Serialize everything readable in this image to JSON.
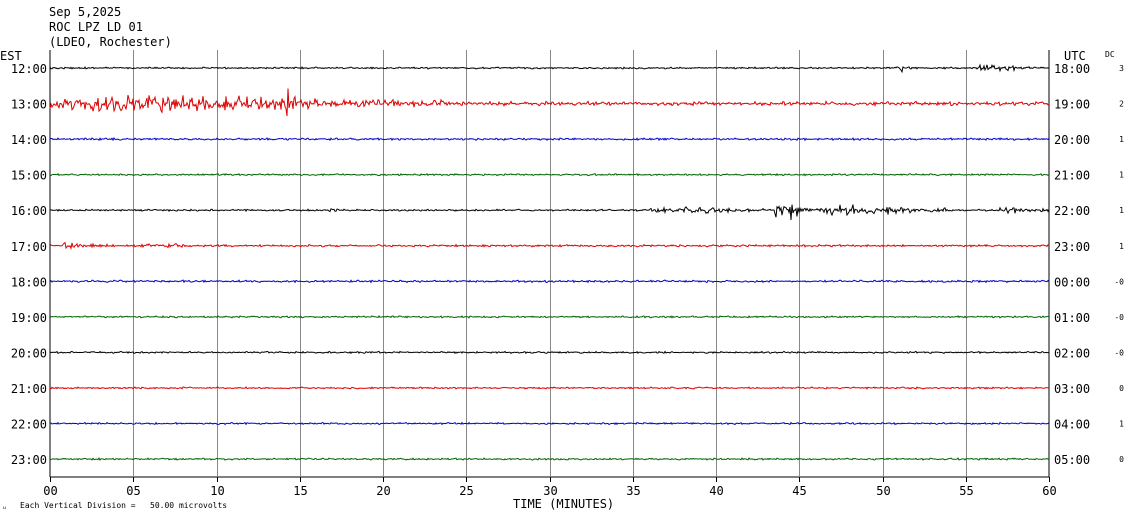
{
  "header": {
    "date": "Sep 5,2025",
    "station": "ROC LPZ LD 01",
    "network": "(LDEO, Rochester)",
    "left_tz": "EST",
    "right_tz": "UTC",
    "dc_label": "DC"
  },
  "footer": {
    "scale_text": "Each Vertical Division =   50.00 microvolts",
    "corner_mark": "ᵤ"
  },
  "chart_data": {
    "type": "line",
    "title": "",
    "xlabel": "TIME (MINUTES)",
    "ylabel": "",
    "xlim": [
      0,
      60
    ],
    "x_ticks": [
      "00",
      "05",
      "10",
      "15",
      "20",
      "25",
      "30",
      "35",
      "40",
      "45",
      "50",
      "55",
      "60"
    ],
    "grid": true,
    "trace_colors": [
      "#000000",
      "#dd0000",
      "#0000cc",
      "#006400"
    ],
    "rows": [
      {
        "est": "12:00",
        "utc": "18:00",
        "dc": "3",
        "color": "#000000",
        "noise": 1.0,
        "events": [
          {
            "start": 50.7,
            "end": 52.0,
            "amp": 4
          },
          {
            "start": 55.5,
            "end": 58.8,
            "amp": 5
          }
        ]
      },
      {
        "est": "13:00",
        "utc": "19:00",
        "dc": "2",
        "color": "#dd0000",
        "noise": 2.2,
        "events": [
          {
            "start": 0,
            "end": 24,
            "amp": 10
          },
          {
            "start": 14,
            "end": 15,
            "amp": 16
          }
        ]
      },
      {
        "est": "14:00",
        "utc": "20:00",
        "dc": "1",
        "color": "#0000cc",
        "noise": 1.2,
        "events": []
      },
      {
        "est": "15:00",
        "utc": "21:00",
        "dc": "1",
        "color": "#006400",
        "noise": 1.0,
        "events": []
      },
      {
        "est": "16:00",
        "utc": "22:00",
        "dc": "1",
        "color": "#000000",
        "noise": 1.0,
        "events": [
          {
            "start": 16.8,
            "end": 17.3,
            "amp": 4
          },
          {
            "start": 36,
            "end": 43,
            "amp": 4
          },
          {
            "start": 43.5,
            "end": 45.5,
            "amp": 12
          },
          {
            "start": 45.5,
            "end": 54,
            "amp": 6
          },
          {
            "start": 57,
            "end": 60,
            "amp": 4
          }
        ]
      },
      {
        "est": "17:00",
        "utc": "23:00",
        "dc": "1",
        "color": "#dd0000",
        "noise": 1.2,
        "events": [
          {
            "start": 0.5,
            "end": 3.5,
            "amp": 4
          },
          {
            "start": 5,
            "end": 10,
            "amp": 2.5
          }
        ]
      },
      {
        "est": "18:00",
        "utc": "00:00",
        "dc": "-0",
        "color": "#0000cc",
        "noise": 1.2,
        "events": []
      },
      {
        "est": "19:00",
        "utc": "01:00",
        "dc": "-0",
        "color": "#006400",
        "noise": 1.0,
        "events": []
      },
      {
        "est": "20:00",
        "utc": "02:00",
        "dc": "-0",
        "color": "#000000",
        "noise": 1.0,
        "events": []
      },
      {
        "est": "21:00",
        "utc": "03:00",
        "dc": "0",
        "color": "#dd0000",
        "noise": 1.0,
        "events": []
      },
      {
        "est": "22:00",
        "utc": "04:00",
        "dc": "1",
        "color": "#0000cc",
        "noise": 1.0,
        "events": []
      },
      {
        "est": "23:00",
        "utc": "05:00",
        "dc": "0",
        "color": "#006400",
        "noise": 1.0,
        "events": []
      }
    ]
  }
}
